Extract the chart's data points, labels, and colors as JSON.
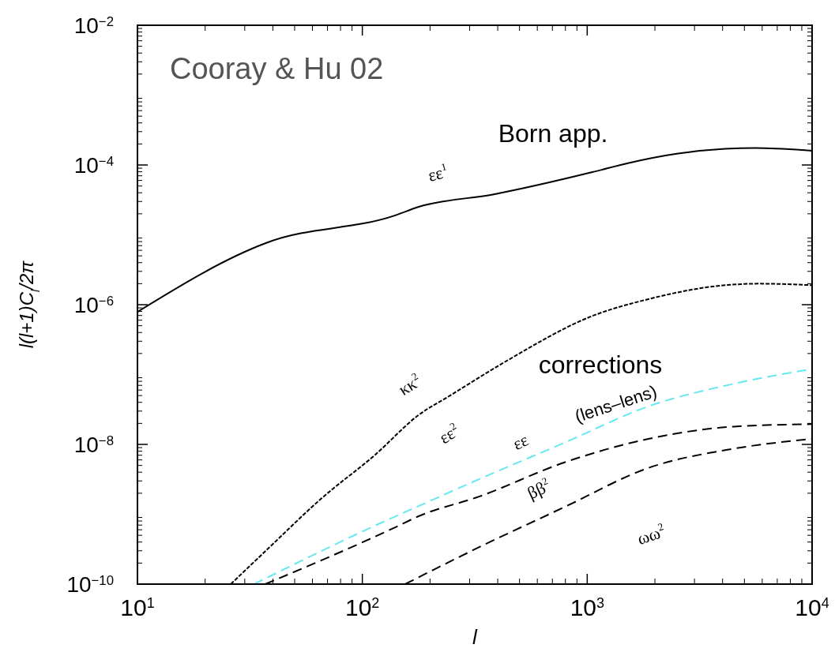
{
  "chart_data": {
    "type": "line",
    "xlabel": "l",
    "ylabel": "l(l+1)C$_{l}$/2π",
    "log": "xy",
    "xlim": [
      10,
      10000
    ],
    "ylim": [
      1e-10,
      0.01
    ],
    "xticks": [
      {
        "value": 10,
        "label": "10$^{1}$"
      },
      {
        "value": 100,
        "label": "10$^{2}$"
      },
      {
        "value": 1000,
        "label": "10$^{3}$"
      },
      {
        "value": 10000,
        "label": "10$^{4}$"
      }
    ],
    "yticks": [
      {
        "value": 1e-10,
        "label": "10$^{−10}$"
      },
      {
        "value": 1e-08,
        "label": "10$^{−8}$"
      },
      {
        "value": 1e-06,
        "label": "10$^{−6}$"
      },
      {
        "value": 0.0001,
        "label": "10$^{−4}$"
      },
      {
        "value": 0.01,
        "label": "10$^{−2}$"
      }
    ],
    "grid": false,
    "series": [
      {
        "color": "#000000",
        "line_style": "solid",
        "x": [
          10,
          38,
          140,
          177,
          384,
          1054,
          1530,
          2500,
          4100,
          5600,
          10000
        ],
        "values": [
          7.9e-07,
          7.8e-06,
          1.9e-05,
          2.5e-05,
          3.8e-05,
          7.9e-05,
          0.000107,
          0.000145,
          0.00017,
          0.000175,
          0.00016
        ]
      },
      {
        "color": "#000000",
        "line_style": "dotted",
        "x": [
          26,
          38,
          66,
          114,
          177,
          248,
          443,
          1054,
          1870,
          4100,
          5800,
          10000
        ],
        "values": [
          1e-10,
          3.2e-10,
          1.7e-09,
          7.1e-09,
          2.6e-08,
          5.1e-08,
          1.6e-07,
          6.9e-07,
          1.2e-06,
          1.9e-06,
          2e-06,
          1.9e-06
        ]
      },
      {
        "color": "#66e8f0",
        "line_style": "dashed",
        "x": [
          33,
          140,
          177,
          332,
          789,
          1870,
          4500,
          10000
        ],
        "values": [
          1e-10,
          9.3e-10,
          1.3e-09,
          3.2e-09,
          1.05e-08,
          3.5e-08,
          7.4e-08,
          1.2e-07
        ]
      },
      {
        "color": "#000000",
        "line_style": "dashed",
        "x": [
          37,
          140,
          177,
          332,
          789,
          1870,
          4500,
          10000
        ],
        "values": [
          1e-10,
          6.5e-10,
          9.3e-10,
          1.8e-09,
          5.5e-09,
          1.2e-08,
          1.8e-08,
          1.95e-08
        ]
      },
      {
        "color": "#000000",
        "line_style": "dashed",
        "x": [
          155,
          332,
          789,
          1870,
          4500,
          10000
        ],
        "values": [
          1e-10,
          3.4e-10,
          1.26e-09,
          4.6e-09,
          8.7e-09,
          1.2e-08
        ]
      }
    ],
    "annotations": [
      "Cooray & Hu 02",
      "Born app.",
      "corrections",
      "εε$^{1}$",
      "κκ$^{2}$",
      "εε$^{2}$",
      "εε",
      "(lens–lens)",
      "ββ$^{2}$",
      "ωω$^{2}$"
    ]
  }
}
